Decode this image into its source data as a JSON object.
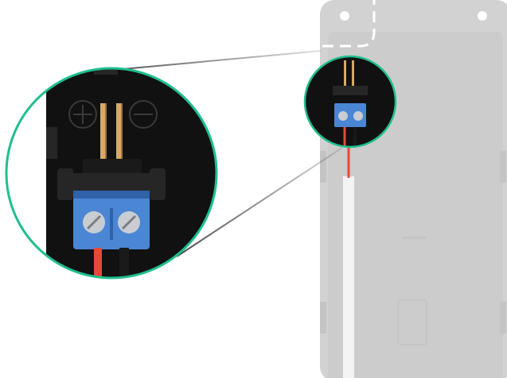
{
  "image": {
    "subject": "terminal-block-wiring-diagram",
    "colors": {
      "background": "#ffffff",
      "device_body": "#d2d2d2",
      "device_body_edge": "#c4c4c4",
      "device_panel": "#cccccc",
      "mount_hole": "#ffffff",
      "dashed_cutout": "#ffffff",
      "circuit_board": "#111111",
      "board_detail": "#262626",
      "pin_gold": "#d6a86a",
      "pin_gold_shadow": "#a07440",
      "terminal_blue": "#4a86d4",
      "terminal_blue_dark": "#2f62a8",
      "screw_silver": "#c9cdd2",
      "screw_slot": "#7a7e84",
      "wire_red": "#e8483a",
      "wire_black": "#1a1a1a",
      "cable_white": "#f4f4f4",
      "callout_ring": "#1fbf8f",
      "callout_line": "#333333"
    },
    "icons": [
      "plus-symbol-icon",
      "minus-symbol-icon",
      "screw-icon"
    ]
  }
}
